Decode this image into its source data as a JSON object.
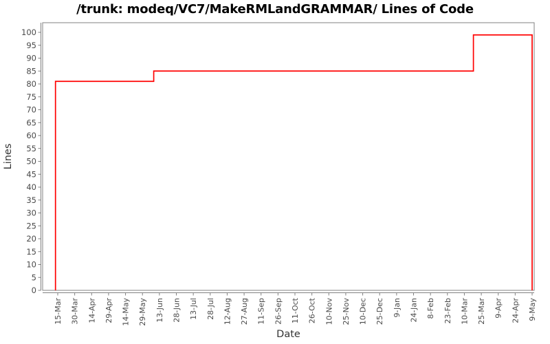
{
  "page": {
    "title": "/trunk: modeq/VC7/MakeRMLandGRAMMAR/ Lines of Code"
  },
  "chart_data": {
    "type": "line",
    "style": "step",
    "title": "/trunk: modeq/VC7/MakeRMLandGRAMMAR/ Lines of Code",
    "xlabel": "Date",
    "ylabel": "Lines",
    "ylim": [
      0,
      103.7
    ],
    "grid": false,
    "legend": "none",
    "y_ticks": [
      0,
      5,
      10,
      15,
      20,
      25,
      30,
      35,
      40,
      45,
      50,
      55,
      60,
      65,
      70,
      75,
      80,
      85,
      90,
      95,
      100
    ],
    "x_ticks": [
      "15-Mar",
      "30-Mar",
      "14-Apr",
      "29-Apr",
      "14-May",
      "29-May",
      "13-Jun",
      "28-Jun",
      "13-Jul",
      "28-Jul",
      "12-Aug",
      "27-Aug",
      "11-Sep",
      "26-Sep",
      "11-Oct",
      "26-Oct",
      "10-Nov",
      "25-Nov",
      "10-Dec",
      "25-Dec",
      "9-Jan",
      "24-Jan",
      "8-Feb",
      "23-Feb",
      "10-Mar",
      "25-Mar",
      "9-Apr",
      "24-Apr",
      "9-May"
    ],
    "x_tick_spacing_days": 15,
    "series": [
      {
        "name": "Lines of Code",
        "color": "#ff0000",
        "points": [
          {
            "day": -2,
            "lines": 0
          },
          {
            "day": -2,
            "lines": 81
          },
          {
            "day": 85,
            "lines": 81
          },
          {
            "day": 85,
            "lines": 85
          },
          {
            "day": 368,
            "lines": 85
          },
          {
            "day": 368,
            "lines": 99
          },
          {
            "day": 420,
            "lines": 99
          },
          {
            "day": 420,
            "lines": 0
          }
        ],
        "summary": "81 lines from ~13-Mar; steps to 85 lines ~7-Jun; steps to 99 lines ~18-Mar of following year; series ends 9-May (day 0 = 15-Mar tick)"
      }
    ],
    "colors": {
      "line": "#ff0000",
      "plot_border": "#808080",
      "axis": "#808080",
      "tick_label": "#4a4a4a",
      "axis_label": "#333333",
      "title": "#000000",
      "background": "#ffffff"
    }
  }
}
